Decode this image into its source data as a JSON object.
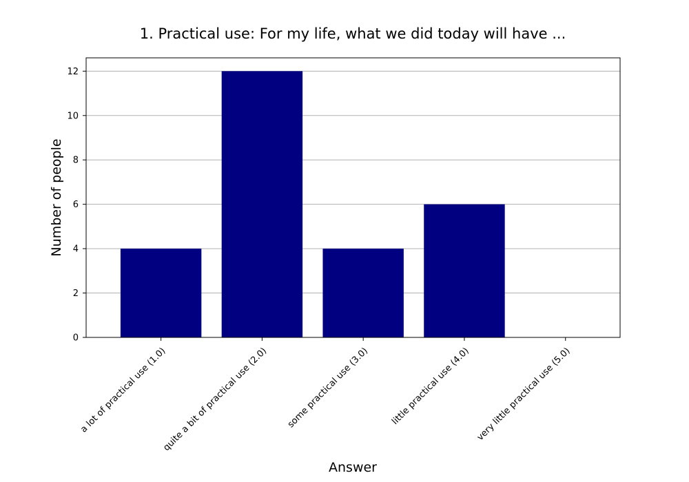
{
  "chart_data": {
    "type": "bar",
    "title": "1. Practical use: For my life, what we did today will have ...",
    "xlabel": "Answer",
    "ylabel": "Number of people",
    "categories": [
      "a lot of practical use (1.0)",
      "quite a bit of practical use (2.0)",
      "some practical use (3.0)",
      "little practical use (4.0)",
      "very little practical use (5.0)"
    ],
    "values": [
      4,
      12,
      4,
      6,
      0
    ],
    "ylim": [
      0,
      12.6
    ],
    "yticks": [
      0,
      2,
      4,
      6,
      8,
      10,
      12
    ],
    "grid": "y",
    "legend": "none",
    "bar_color": "#000080",
    "grid_color": "#b0b0b0"
  }
}
